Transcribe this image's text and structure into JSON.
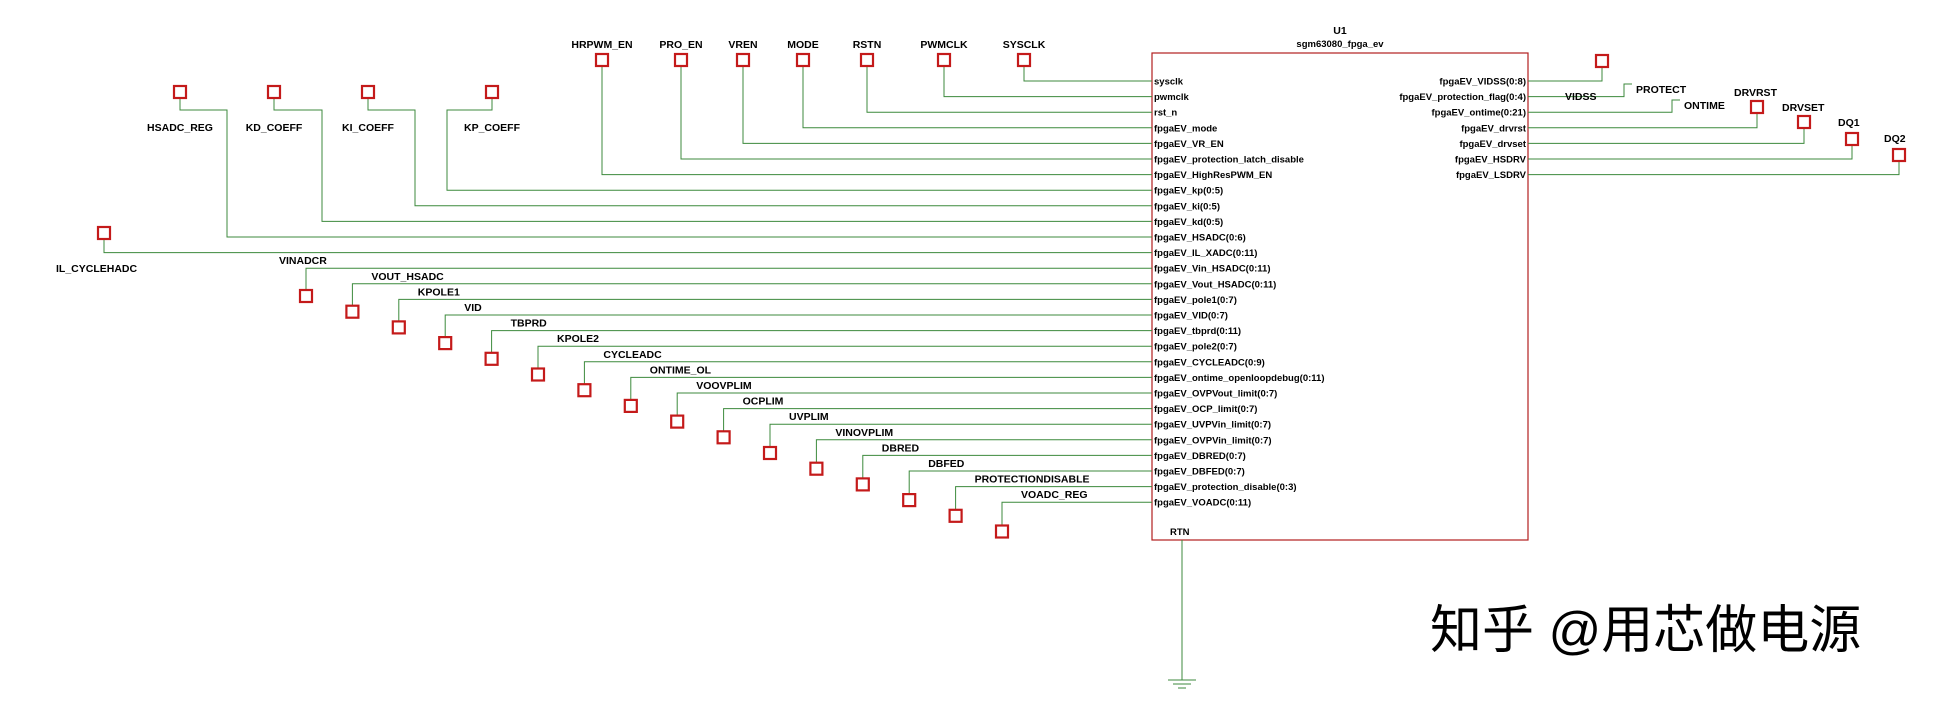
{
  "component": {
    "ref": "U1",
    "part": "sgm63080_fpga_ev",
    "ground_pin": "RTN",
    "left_pins": [
      "sysclk",
      "pwmclk",
      "rst_n",
      "fpgaEV_mode",
      "fpgaEV_VR_EN",
      "fpgaEV_protection_latch_disable",
      "fpgaEV_HighResPWM_EN",
      "fpgaEV_kp(0:5)",
      "fpgaEV_ki(0:5)",
      "fpgaEV_kd(0:5)",
      "fpgaEV_HSADC(0:6)",
      "fpgaEV_IL_XADC(0:11)",
      "fpgaEV_Vin_HSADC(0:11)",
      "fpgaEV_Vout_HSADC(0:11)",
      "fpgaEV_pole1(0:7)",
      "fpgaEV_VID(0:7)",
      "fpgaEV_tbprd(0:11)",
      "fpgaEV_pole2(0:7)",
      "fpgaEV_CYCLEADC(0:9)",
      "fpgaEV_ontime_openloopdebug(0:11)",
      "fpgaEV_OVPVout_limit(0:7)",
      "fpgaEV_OCP_limit(0:7)",
      "fpgaEV_UVPVin_limit(0:7)",
      "fpgaEV_OVPVin_limit(0:7)",
      "fpgaEV_DBRED(0:7)",
      "fpgaEV_DBFED(0:7)",
      "fpgaEV_protection_disable(0:3)",
      "fpgaEV_VOADC(0:11)"
    ],
    "right_pins": [
      "fpgaEV_VIDSS(0:8)",
      "fpgaEV_protection_flag(0:4)",
      "fpgaEV_ontime(0:21)",
      "fpgaEV_drvrst",
      "fpgaEV_drvset",
      "fpgaEV_HSDRV",
      "fpgaEV_LSDRV"
    ]
  },
  "top_nets": [
    "HRPWM_EN",
    "PRO_EN",
    "VREN",
    "MODE",
    "RSTN",
    "PWMCLK",
    "SYSCLK"
  ],
  "coeff_nets": [
    "HSADC_REG",
    "KD_COEFF",
    "KI_COEFF",
    "KP_COEFF"
  ],
  "il_net": "IL_CYCLEHADC",
  "stair_nets": [
    "VINADCR",
    "VOUT_HSADC",
    "KPOLE1",
    "VID",
    "TBPRD",
    "KPOLE2",
    "CYCLEADC",
    "ONTIME_OL",
    "VOOVPLIM",
    "OCPLIM",
    "UVPLIM",
    "VINOVPLIM",
    "DBRED",
    "DBFED",
    "PROTECTIONDISABLE",
    "VOADC_REG"
  ],
  "right_nets": [
    "VIDSS",
    "PROTECT",
    "ONTIME",
    "DRVRST",
    "DRVSET",
    "DQ1",
    "DQ2"
  ],
  "watermark": "知乎 @用芯做电源",
  "colors": {
    "wire": "#3c8a3c",
    "terminal": "#c41a1a",
    "body": "#b21f1f",
    "watermark": "#c9c9c9"
  }
}
